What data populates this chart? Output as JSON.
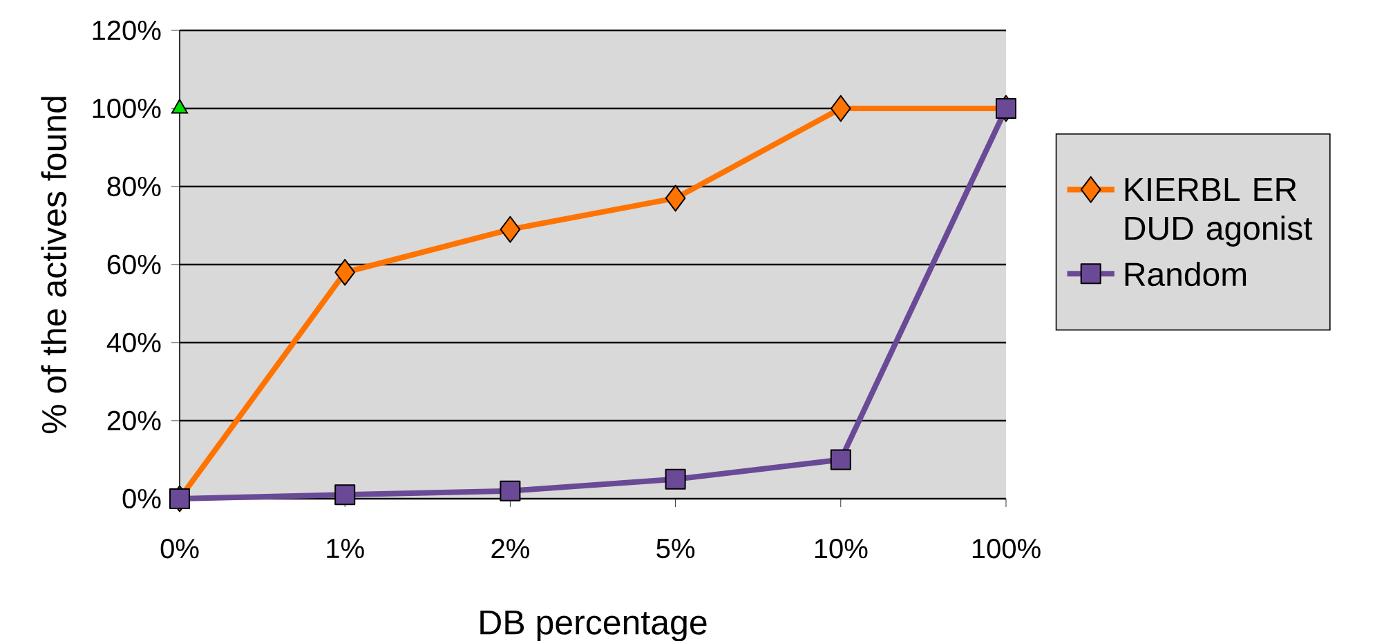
{
  "chart_data": {
    "type": "line",
    "xlabel": "DB percentage",
    "ylabel": "% of the actives found",
    "categories": [
      "0%",
      "1%",
      "2%",
      "5%",
      "10%",
      "100%"
    ],
    "series": [
      {
        "name": "KIERBL ER DUD agonist",
        "color": "#ff7300",
        "marker": "diamond",
        "values": [
          0,
          58,
          69,
          77,
          100,
          100
        ]
      },
      {
        "name": "Random",
        "color": "#6a4a96",
        "marker": "square",
        "values": [
          0,
          1,
          2,
          5,
          10,
          100
        ]
      },
      {
        "type": "scatter",
        "color": "#00dd00",
        "marker": "triangle",
        "x": [
          "0%"
        ],
        "values": [
          100
        ]
      }
    ],
    "ylim": [
      0,
      120
    ],
    "yticks": [
      {
        "value": 0,
        "label": "0%"
      },
      {
        "value": 20,
        "label": "20%"
      },
      {
        "value": 40,
        "label": "40%"
      },
      {
        "value": 60,
        "label": "60%"
      },
      {
        "value": 80,
        "label": "80%"
      },
      {
        "value": 100,
        "label": "100%"
      },
      {
        "value": 120,
        "label": "120%"
      }
    ],
    "grid": "y",
    "legend": "right"
  }
}
